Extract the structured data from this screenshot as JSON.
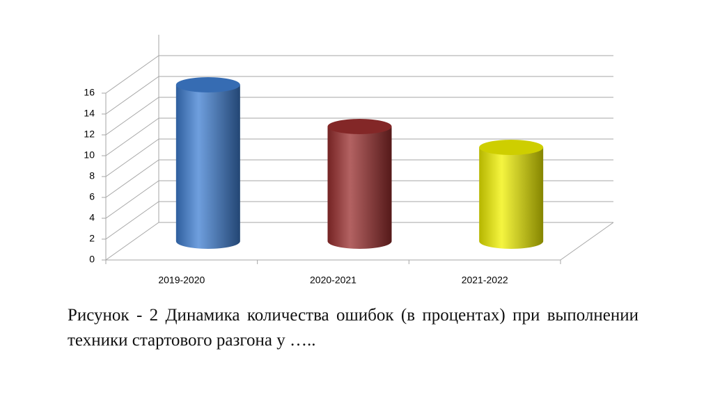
{
  "chart_data": {
    "type": "bar3d",
    "categories": [
      "2019-2020",
      "2020-2021",
      "2021-2022"
    ],
    "values": [
      15,
      11,
      9
    ],
    "colors": [
      "#3f7fd3",
      "#9a2e2e",
      "#f2f200"
    ],
    "ylim": [
      0,
      16
    ],
    "yticks": [
      0,
      2,
      4,
      6,
      8,
      10,
      12,
      14,
      16
    ],
    "grid": true,
    "caption": "Рисунок - 2 Динамика количества ошибок (в процентах) при выполнении техники стартового разгона у ….."
  }
}
